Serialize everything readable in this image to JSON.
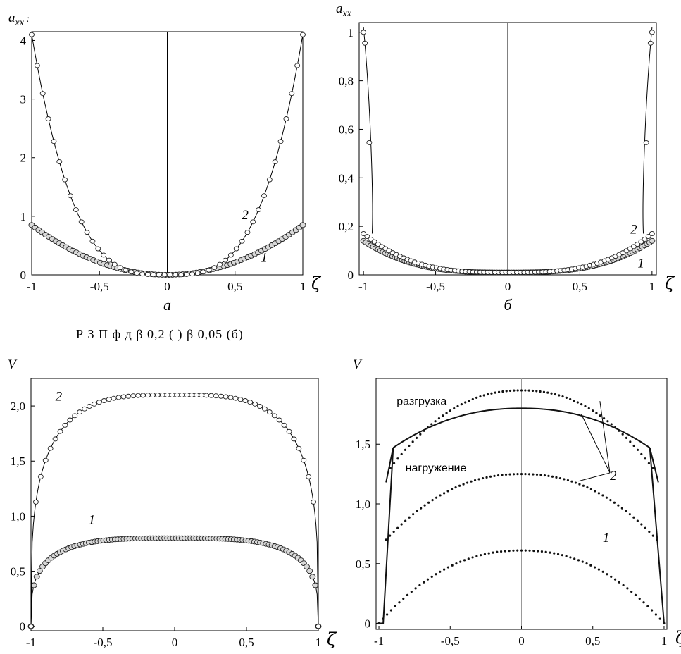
{
  "caption": "Р    3 П    ф                                                   д          β    0,2 ( )    β    0,05 (б)",
  "chart_data": [
    {
      "type": "scatter",
      "panel": "a",
      "sublabel": "а",
      "ylabel": "a",
      "ylabel_sub": "xx",
      "ylabel_suffix": ":",
      "xlabel": "ζ",
      "xlim": [
        -1,
        1
      ],
      "ylim": [
        0,
        4.15
      ],
      "xticks": [
        -1,
        -0.5,
        0,
        0.5,
        1
      ],
      "xtick_labels": [
        "-1",
        "-0,5",
        "0",
        "0,5",
        "1"
      ],
      "yticks": [
        0,
        1,
        2,
        3,
        4
      ],
      "ytick_labels": [
        "0",
        "1",
        "2",
        "3",
        "4"
      ],
      "center_line": true,
      "series": [
        {
          "name": "1",
          "curve": "power",
          "peak": 0.85,
          "base": 0.0,
          "exponent": 2,
          "points": 80,
          "marker": "circle-grey"
        },
        {
          "name": "2",
          "curve": "power",
          "peak": 4.1,
          "base": 0.0,
          "exponent": 3.3,
          "points": 50,
          "marker": "circle-open"
        }
      ],
      "curve_labels": [
        {
          "text": "2",
          "x": 0.55,
          "y": 0.95
        },
        {
          "text": "1",
          "x": 0.69,
          "y": 0.22
        }
      ]
    },
    {
      "type": "scatter",
      "panel": "b",
      "sublabel": "б",
      "ylabel": "a",
      "ylabel_sub": "xx",
      "xlabel": "ζ",
      "xlim": [
        -1.03,
        1.03
      ],
      "ylim": [
        0,
        1.04
      ],
      "xticks": [
        -1,
        -0.5,
        0,
        0.5,
        1
      ],
      "xtick_labels": [
        "-1",
        "-0,5",
        "0",
        "0,5",
        "1"
      ],
      "yticks": [
        0,
        0.2,
        0.4,
        0.6,
        0.8,
        1
      ],
      "ytick_labels": [
        "0",
        "0,2",
        "0,4",
        "0,6",
        "0,8",
        "1"
      ],
      "center_line": true,
      "series": [
        {
          "name": "1",
          "curve": "power",
          "peak": 0.14,
          "base": 0.01,
          "exponent": 3,
          "points": 120,
          "marker": "circle-grey"
        },
        {
          "name": "2",
          "curve": "power",
          "peak": 0.17,
          "base": 0.01,
          "exponent": 3,
          "points": 80,
          "marker": "circle-open"
        }
      ],
      "edge_points": [
        {
          "x": -1.0,
          "y": 1.0
        },
        {
          "x": -0.99,
          "y": 0.955
        },
        {
          "x": -0.96,
          "y": 0.545
        },
        {
          "x": 1.0,
          "y": 1.0
        },
        {
          "x": 0.99,
          "y": 0.955
        },
        {
          "x": 0.96,
          "y": 0.545
        }
      ],
      "curve_labels": [
        {
          "text": "2",
          "x": 0.85,
          "y": 0.17
        },
        {
          "text": "1",
          "x": 0.9,
          "y": 0.03
        }
      ]
    },
    {
      "type": "scatter",
      "panel": "c",
      "ylabel": "V",
      "xlabel": "ζ",
      "xlim": [
        -1,
        1
      ],
      "ylim": [
        -0.04,
        2.25
      ],
      "xticks": [
        -1,
        -0.5,
        0,
        0.5,
        1
      ],
      "xtick_labels": [
        "-1",
        "-0,5",
        "0",
        "0,5",
        "1"
      ],
      "yticks": [
        0,
        0.5,
        1,
        1.5,
        2
      ],
      "ytick_labels": [
        "0",
        "0,5",
        "1,0",
        "1,5",
        "2,0"
      ],
      "series": [
        {
          "name": "1",
          "curve": "dome",
          "peak": 0.8,
          "exponent": 3.5,
          "points": 100,
          "marker": "circle-grey"
        },
        {
          "name": "2",
          "curve": "dome",
          "peak": 2.1,
          "exponent": 3.5,
          "points": 60,
          "marker": "circle-open"
        }
      ],
      "curve_labels": [
        {
          "text": "2",
          "x": -0.83,
          "y": 2.05
        },
        {
          "text": "1",
          "x": -0.6,
          "y": 0.93
        }
      ]
    },
    {
      "type": "line",
      "panel": "d",
      "ylabel": "V",
      "xlabel": "ζ",
      "xlim": [
        -1.02,
        1.02
      ],
      "ylim": [
        -0.05,
        2.05
      ],
      "xticks": [
        -1,
        -0.5,
        0,
        0.5,
        1
      ],
      "xtick_labels": [
        "-1",
        "-0,5",
        "0",
        "0,5",
        "1"
      ],
      "yticks": [
        0,
        0.5,
        1,
        1.5
      ],
      "ytick_labels": [
        "0",
        "0,5",
        "1,0",
        "1,5"
      ],
      "center_line": true,
      "series": [
        {
          "name": "разгрузка",
          "curve": "dome",
          "peak": 1.95,
          "edge": 1.3,
          "start": 0.92,
          "style": "dotted"
        },
        {
          "name": "нагружение",
          "curve": "dome",
          "peak": 1.25,
          "edge": 0.7,
          "start": 0.95,
          "style": "dotted"
        },
        {
          "name": "1",
          "curve": "dome",
          "peak": 0.61,
          "edge": 0.0,
          "start": 1.0,
          "style": "dotted"
        },
        {
          "name": "2",
          "curve": "dome",
          "peak": 1.8,
          "edge": 1.47,
          "start": 0.9,
          "style": "solid",
          "drop_to": 0.0
        }
      ],
      "annotations": [
        {
          "text": "разгрузка",
          "x": -0.7,
          "y": 1.83
        },
        {
          "text": "нагружение",
          "x": -0.6,
          "y": 1.27
        }
      ],
      "curve_labels": [
        {
          "text": "2",
          "x": 0.62,
          "y": 1.2
        },
        {
          "text": "1",
          "x": 0.57,
          "y": 0.68
        }
      ]
    }
  ]
}
